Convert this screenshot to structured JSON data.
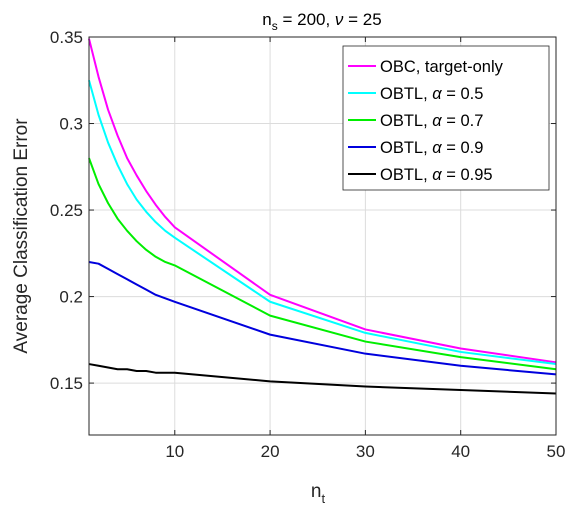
{
  "chart_data": {
    "type": "line",
    "title": {
      "n_main": "n",
      "n_sub": "s",
      "eq_part": " = 200, ",
      "nu_symbol": "ν",
      "nu_part": " = 25"
    },
    "xlabel": {
      "main": "n",
      "sub": "t"
    },
    "ylabel": "Average Classification Error",
    "xlim": [
      1,
      50
    ],
    "ylim": [
      0.12,
      0.35
    ],
    "xticks": [
      10,
      20,
      30,
      40,
      50
    ],
    "xtick_labels": [
      "10",
      "20",
      "30",
      "40",
      "50"
    ],
    "yticks": [
      0.15,
      0.2,
      0.25,
      0.3,
      0.35
    ],
    "ytick_labels": [
      "0.15",
      "0.2",
      "0.25",
      "0.3",
      "0.35"
    ],
    "grid": true,
    "legend_position": "top-right",
    "x": [
      1,
      2,
      3,
      4,
      5,
      6,
      7,
      8,
      9,
      10,
      20,
      30,
      40,
      50
    ],
    "series": [
      {
        "name_text": "OBC, target-only",
        "name_alpha": "",
        "name_value": "",
        "color": "#ff00ff",
        "values": [
          0.349,
          0.327,
          0.308,
          0.293,
          0.28,
          0.27,
          0.261,
          0.253,
          0.246,
          0.24,
          0.201,
          0.181,
          0.17,
          0.162
        ]
      },
      {
        "name_text": "OBTL, ",
        "name_alpha": "α",
        "name_value": " = 0.5",
        "color": "#00ffff",
        "values": [
          0.325,
          0.305,
          0.289,
          0.276,
          0.265,
          0.256,
          0.249,
          0.243,
          0.238,
          0.234,
          0.197,
          0.179,
          0.168,
          0.161
        ]
      },
      {
        "name_text": "OBTL, ",
        "name_alpha": "α",
        "name_value": " = 0.7",
        "color": "#00ee00",
        "values": [
          0.28,
          0.265,
          0.254,
          0.245,
          0.238,
          0.232,
          0.227,
          0.223,
          0.22,
          0.218,
          0.189,
          0.174,
          0.165,
          0.158
        ]
      },
      {
        "name_text": "OBTL, ",
        "name_alpha": "α",
        "name_value": " = 0.9",
        "color": "#0000dd",
        "values": [
          0.22,
          0.219,
          0.216,
          0.213,
          0.21,
          0.207,
          0.204,
          0.201,
          0.199,
          0.197,
          0.178,
          0.167,
          0.16,
          0.155
        ]
      },
      {
        "name_text": "OBTL, ",
        "name_alpha": "α",
        "name_value": " = 0.95",
        "color": "#000000",
        "values": [
          0.161,
          0.16,
          0.159,
          0.158,
          0.158,
          0.157,
          0.157,
          0.156,
          0.156,
          0.156,
          0.151,
          0.148,
          0.146,
          0.144
        ]
      }
    ]
  }
}
